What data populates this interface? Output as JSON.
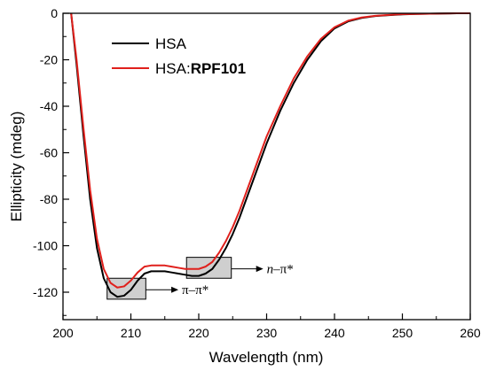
{
  "chart_data": {
    "type": "line",
    "xlabel": "Wavelength (nm)",
    "ylabel": "Ellipticity (mdeg)",
    "xlim": [
      200,
      260
    ],
    "ylim": [
      -130,
      0
    ],
    "x_ticks": [
      200,
      210,
      220,
      230,
      240,
      250,
      260
    ],
    "y_ticks": [
      0,
      -20,
      -40,
      -60,
      -80,
      -100,
      -120
    ],
    "x_tick_labels": [
      "200",
      "210",
      "220",
      "230",
      "240",
      "250",
      "260"
    ],
    "y_tick_labels": [
      "0",
      "-20",
      "-40",
      "-60",
      "-80",
      "-100",
      "-120"
    ],
    "grid": false,
    "legend_position": "top-left",
    "series": [
      {
        "name": "HSA",
        "legend_prefix": "HSA",
        "legend_bold": "",
        "color": "#000000",
        "x": [
          201.2,
          202,
          203,
          204,
          205,
          206,
          207,
          208,
          209,
          210,
          211,
          212,
          213,
          214,
          215,
          216,
          217,
          218,
          219,
          220,
          221,
          222,
          223,
          224,
          225,
          226,
          227,
          228,
          229,
          230,
          232,
          234,
          236,
          238,
          240,
          242,
          244,
          246,
          248,
          250,
          252,
          254,
          256,
          258,
          260
        ],
        "y": [
          0,
          -22,
          -52,
          -80,
          -101,
          -114,
          -120,
          -122,
          -121.5,
          -119,
          -115,
          -112,
          -111,
          -111,
          -111,
          -111.5,
          -112,
          -112.5,
          -113,
          -113,
          -112,
          -110,
          -106,
          -101,
          -95,
          -88,
          -80,
          -72,
          -64,
          -56,
          -42,
          -30,
          -20,
          -12,
          -6.5,
          -3.5,
          -2,
          -1.2,
          -0.8,
          -0.5,
          -0.3,
          -0.2,
          -0.1,
          0,
          0
        ]
      },
      {
        "name": "HSA:RPF101",
        "legend_prefix": "HSA:",
        "legend_bold": "RPF101",
        "color": "#e0201c",
        "x": [
          201.2,
          202,
          203,
          204,
          205,
          206,
          207,
          208,
          209,
          210,
          211,
          212,
          213,
          214,
          215,
          216,
          217,
          218,
          219,
          220,
          221,
          222,
          223,
          224,
          225,
          226,
          227,
          228,
          229,
          230,
          232,
          234,
          236,
          238,
          240,
          242,
          244,
          246,
          248,
          250,
          252,
          254,
          256,
          258,
          260
        ],
        "y": [
          0,
          -20,
          -49,
          -76,
          -97,
          -110,
          -116,
          -118,
          -117.5,
          -115,
          -111.5,
          -109,
          -108.5,
          -108.5,
          -108.5,
          -109,
          -109.5,
          -110,
          -110,
          -110,
          -109,
          -107,
          -103,
          -98,
          -92,
          -85,
          -77,
          -69,
          -61,
          -53,
          -40,
          -28,
          -18.5,
          -11,
          -6,
          -3.2,
          -1.8,
          -1.1,
          -0.7,
          -0.4,
          -0.3,
          -0.2,
          -0.1,
          0,
          0
        ]
      }
    ],
    "annotations": [
      {
        "label": "π–π*",
        "label_parts": [
          "π–π*"
        ],
        "box_x": [
          206.5,
          212.2
        ],
        "box_y": [
          -114,
          -123
        ],
        "arrow_to_x": 217
      },
      {
        "label": "n–π*",
        "label_parts": [
          "n",
          "–π*"
        ],
        "box_x": [
          218.2,
          224.8
        ],
        "box_y": [
          -105,
          -114
        ],
        "arrow_to_x": 229.5
      }
    ]
  }
}
